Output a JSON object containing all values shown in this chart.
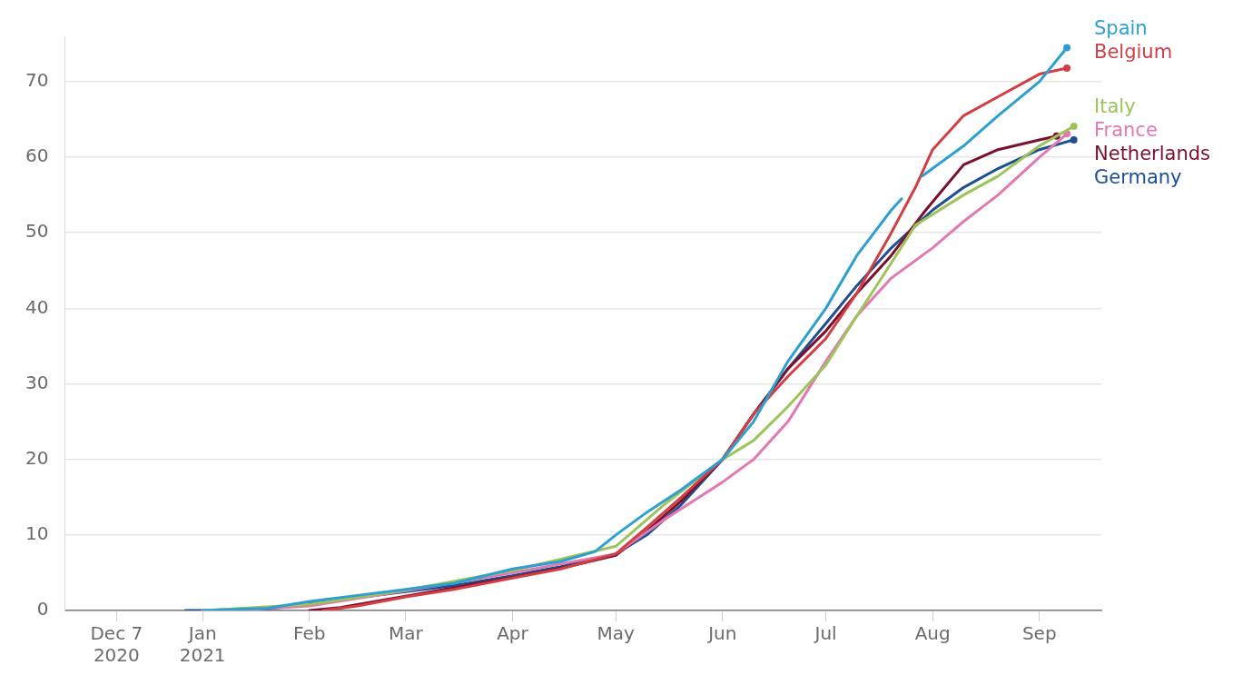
{
  "chart_data": {
    "type": "line",
    "xlim": [
      "2020-11-22",
      "2021-09-19"
    ],
    "ylim": [
      0,
      76
    ],
    "xticks": [
      {
        "value": "2020-12-07",
        "label": "Dec 7\n2020"
      },
      {
        "value": "2021-01-01",
        "label": "Jan\n2021"
      },
      {
        "value": "2021-02-01",
        "label": "Feb"
      },
      {
        "value": "2021-03-01",
        "label": "Mar"
      },
      {
        "value": "2021-04-01",
        "label": "Apr"
      },
      {
        "value": "2021-05-01",
        "label": "May"
      },
      {
        "value": "2021-06-01",
        "label": "Jun"
      },
      {
        "value": "2021-07-01",
        "label": "Jul"
      },
      {
        "value": "2021-08-01",
        "label": "Aug"
      },
      {
        "value": "2021-09-01",
        "label": "Sep"
      }
    ],
    "yticks": [
      0,
      10,
      20,
      30,
      40,
      50,
      60,
      70
    ],
    "grid": "y",
    "legend": false,
    "series": [
      {
        "name": "Spain",
        "color": "#2e9fd0",
        "x": [
          "2021-01-01",
          "2021-01-20",
          "2021-02-01",
          "2021-02-15",
          "2021-03-01",
          "2021-03-15",
          "2021-04-01",
          "2021-04-15",
          "2021-04-25",
          "2021-05-01",
          "2021-05-10",
          "2021-05-20",
          "2021-06-01",
          "2021-06-10",
          "2021-06-20",
          "2021-07-01",
          "2021-07-10",
          "2021-07-20",
          "2021-07-23",
          "2021-07-26",
          "2021-07-29",
          "2021-08-10",
          "2021-08-20",
          "2021-09-01",
          "2021-09-09"
        ],
        "values": [
          0,
          0.3,
          1.2,
          2,
          2.8,
          3.6,
          5.5,
          6.5,
          7.8,
          10,
          13,
          16,
          20,
          25,
          33,
          40,
          47,
          53,
          54.5,
          null,
          57.5,
          61.5,
          65.5,
          70,
          74.5
        ]
      },
      {
        "name": "Belgium",
        "color": "#d13f45",
        "x": [
          "2021-02-05",
          "2021-02-15",
          "2021-03-01",
          "2021-03-15",
          "2021-04-01",
          "2021-04-15",
          "2021-05-01",
          "2021-05-10",
          "2021-05-20",
          "2021-06-01",
          "2021-06-10",
          "2021-06-20",
          "2021-07-01",
          "2021-07-10",
          "2021-07-20",
          "2021-07-27",
          "2021-08-01",
          "2021-08-10",
          "2021-08-20",
          "2021-09-01",
          "2021-09-09"
        ],
        "values": [
          0,
          0.6,
          1.8,
          2.8,
          4.3,
          5.5,
          7.5,
          11,
          15,
          20,
          26,
          31,
          36,
          42,
          50,
          56,
          61,
          65.5,
          68,
          71,
          71.8
        ]
      },
      {
        "name": "Italy",
        "color": "#9cc45a",
        "x": [
          "2021-01-01",
          "2021-02-01",
          "2021-03-01",
          "2021-04-01",
          "2021-05-01",
          "2021-05-15",
          "2021-06-01",
          "2021-06-10",
          "2021-06-20",
          "2021-07-01",
          "2021-07-10",
          "2021-07-20",
          "2021-07-27",
          "2021-08-10",
          "2021-08-20",
          "2021-09-01",
          "2021-09-11"
        ],
        "values": [
          0,
          0.8,
          2.7,
          5.3,
          8.5,
          14,
          20,
          22.5,
          27,
          32.5,
          39,
          46,
          51,
          55,
          57.5,
          61.5,
          64.1
        ]
      },
      {
        "name": "France",
        "color": "#e07ab0",
        "x": [
          "2021-01-10",
          "2021-02-01",
          "2021-03-01",
          "2021-04-01",
          "2021-05-01",
          "2021-05-15",
          "2021-06-01",
          "2021-06-10",
          "2021-06-20",
          "2021-07-01",
          "2021-07-10",
          "2021-07-20",
          "2021-08-01",
          "2021-08-10",
          "2021-08-20",
          "2021-09-01",
          "2021-09-09"
        ],
        "values": [
          0,
          0.6,
          2.6,
          5,
          7.5,
          12,
          17,
          20,
          25,
          33,
          39,
          44,
          48,
          51.5,
          55,
          60,
          63.1
        ]
      },
      {
        "name": "Netherlands",
        "color": "#7a0f2e",
        "x": [
          "2021-02-01",
          "2021-02-10",
          "2021-03-01",
          "2021-03-15",
          "2021-04-01",
          "2021-04-15",
          "2021-05-01",
          "2021-05-10",
          "2021-05-20",
          "2021-06-01",
          "2021-06-10",
          "2021-06-20",
          "2021-07-01",
          "2021-07-10",
          "2021-07-20",
          "2021-07-30",
          "2021-08-10",
          "2021-08-20",
          "2021-09-01",
          "2021-09-06"
        ],
        "values": [
          0,
          0.4,
          1.9,
          3,
          4.4,
          5.6,
          7.3,
          10.5,
          14.5,
          20,
          26,
          32,
          37,
          42,
          47,
          53,
          59,
          61,
          62.3,
          62.8
        ]
      },
      {
        "name": "Germany",
        "color": "#1d4f91",
        "x": [
          "2020-12-27",
          "2021-01-10",
          "2021-01-20",
          "2021-02-01",
          "2021-02-15",
          "2021-03-01",
          "2021-03-15",
          "2021-04-01",
          "2021-04-15",
          "2021-05-01",
          "2021-05-10",
          "2021-05-20",
          "2021-06-01",
          "2021-06-10",
          "2021-06-20",
          "2021-07-01",
          "2021-07-10",
          "2021-07-20",
          "2021-08-01",
          "2021-08-10",
          "2021-08-20",
          "2021-09-01",
          "2021-09-11"
        ],
        "values": [
          0,
          0,
          0.2,
          0.9,
          1.7,
          2.5,
          3.3,
          4.6,
          5.8,
          7.5,
          10,
          14,
          20,
          26,
          32,
          38,
          43,
          48,
          53,
          56,
          58.5,
          61,
          62.3
        ]
      }
    ]
  }
}
